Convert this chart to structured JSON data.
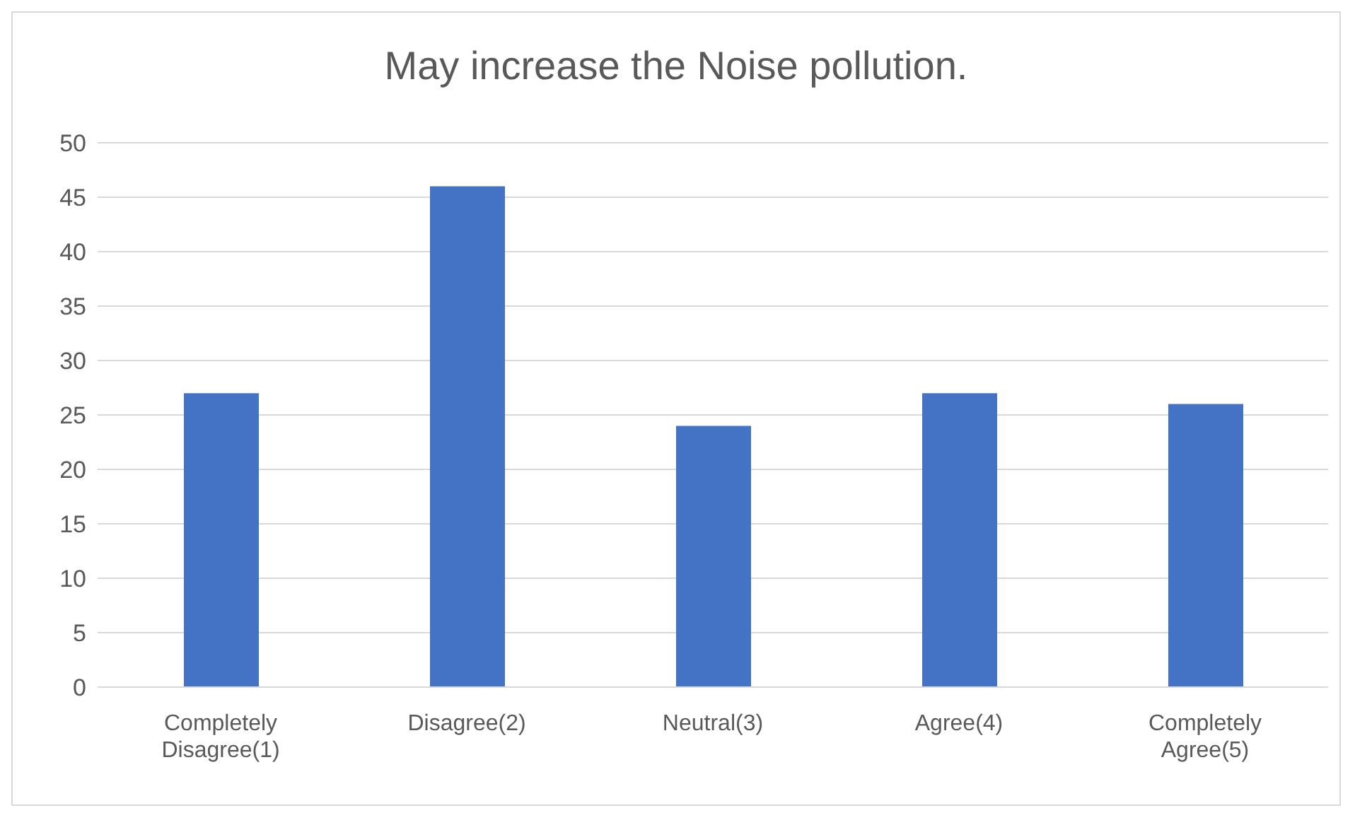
{
  "chart_data": {
    "type": "bar",
    "title": "May increase the Noise pollution.",
    "categories": [
      "Completely Disagree(1)",
      "Disagree(2)",
      "Neutral(3)",
      "Agree(4)",
      "Completely Agree(5)"
    ],
    "values": [
      27,
      46,
      24,
      27,
      26
    ],
    "color": "#4472c4",
    "ylim": [
      0,
      50
    ],
    "yticks": [
      0,
      5,
      10,
      15,
      20,
      25,
      30,
      35,
      40,
      45,
      50
    ],
    "grid": "y",
    "legend": false
  }
}
